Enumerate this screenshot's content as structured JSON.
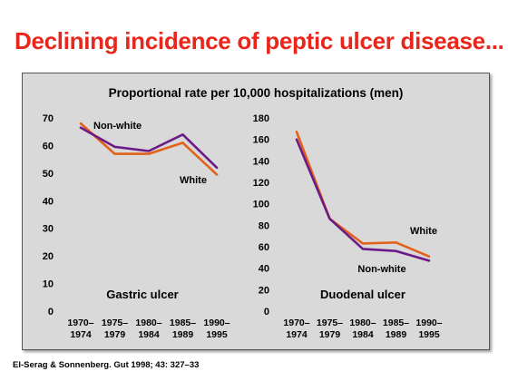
{
  "slide": {
    "title": "Declining incidence of peptic ulcer disease...",
    "citation": "El-Serag & Sonnenberg. Gut 1998; 43: 327–33"
  },
  "chart_data": [
    {
      "type": "line",
      "title": "Proportional rate per 10,000 hospitalizations (men)",
      "panel_label": "Gastric ulcer",
      "categories": [
        [
          "1970–",
          "1974"
        ],
        [
          "1975–",
          "1979"
        ],
        [
          "1980–",
          "1984"
        ],
        [
          "1985–",
          "1989"
        ],
        [
          "1990–",
          "1995"
        ]
      ],
      "ylim": [
        0,
        70
      ],
      "yticks": [
        0,
        10,
        20,
        30,
        40,
        50,
        60,
        70
      ],
      "series": [
        {
          "name": "White",
          "color": "#e2621c",
          "values": [
            68,
            57,
            57,
            61,
            49.5
          ]
        },
        {
          "name": "Non-white",
          "color": "#6b1a86",
          "values": [
            66.5,
            59.5,
            58,
            64,
            52
          ]
        }
      ]
    },
    {
      "type": "line",
      "panel_label": "Duodenal ulcer",
      "categories": [
        [
          "1970–",
          "1974"
        ],
        [
          "1975–",
          "1979"
        ],
        [
          "1980–",
          "1984"
        ],
        [
          "1985–",
          "1989"
        ],
        [
          "1990–",
          "1995"
        ]
      ],
      "ylim": [
        0,
        180
      ],
      "yticks": [
        0,
        20,
        40,
        60,
        80,
        100,
        120,
        140,
        160,
        180
      ],
      "series": [
        {
          "name": "White",
          "color": "#e2621c",
          "values": [
            167,
            86,
            63,
            64,
            51
          ]
        },
        {
          "name": "Non-white",
          "color": "#6b1a86",
          "values": [
            160,
            86,
            58,
            56,
            47
          ]
        }
      ]
    }
  ]
}
